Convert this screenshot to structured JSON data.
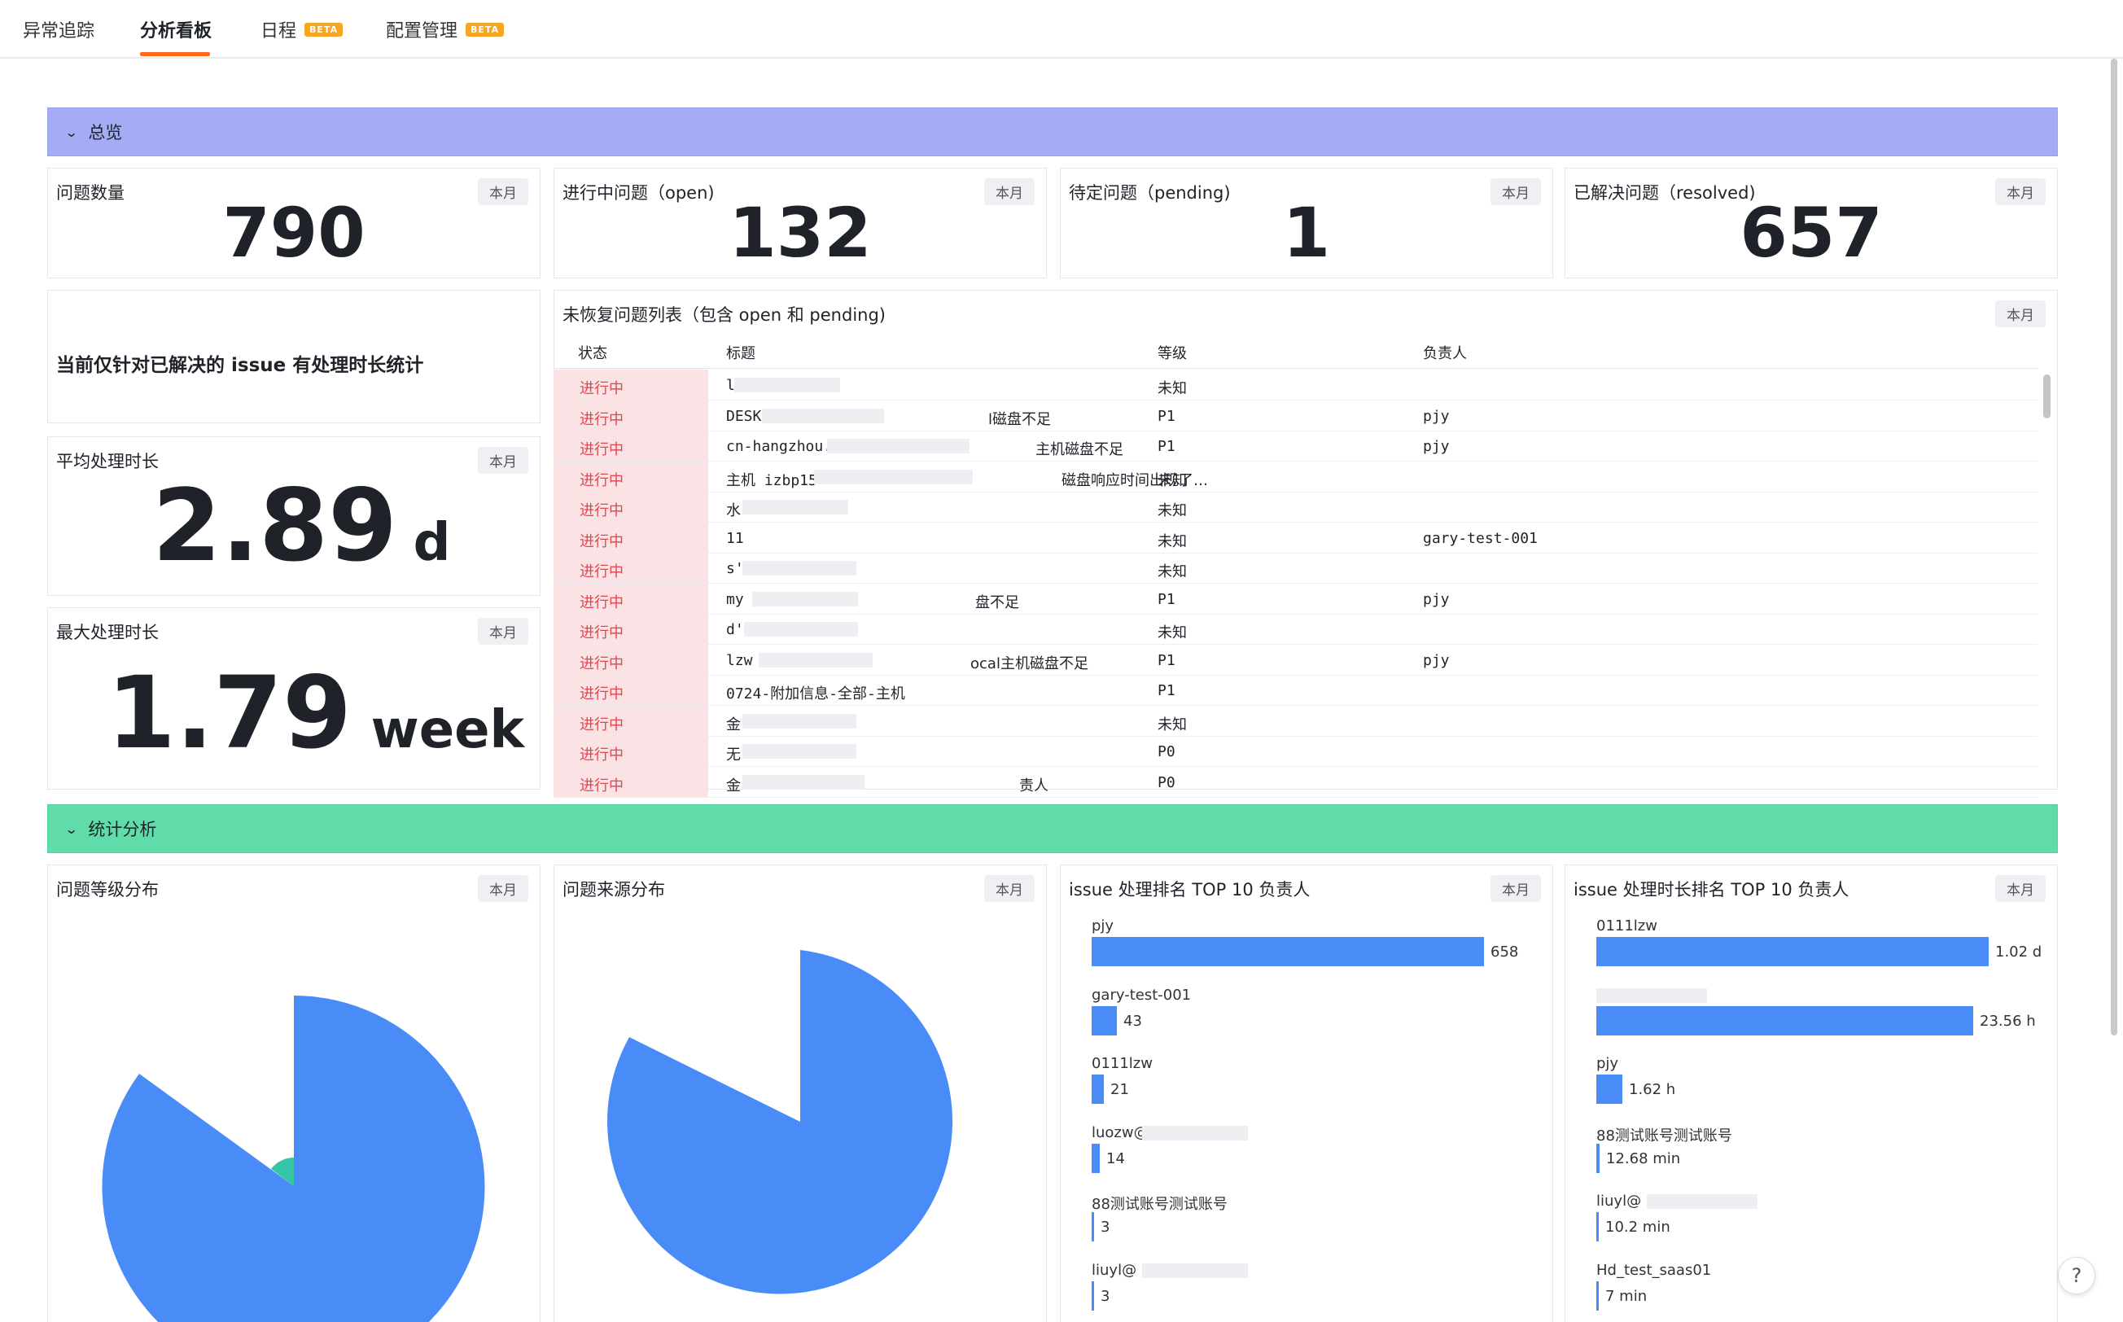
{
  "tabs": [
    {
      "label": "异常追踪",
      "beta": ""
    },
    {
      "label": "分析看板",
      "beta": ""
    },
    {
      "label": "日程",
      "beta": "BETA"
    },
    {
      "label": "配置管理",
      "beta": "BETA"
    }
  ],
  "period_badge": "本月",
  "overview": {
    "section_title": "总览",
    "kpis": [
      {
        "title": "问题数量",
        "value": "790"
      },
      {
        "title": "进行中问题（open)",
        "value": "132"
      },
      {
        "title": "待定问题（pending)",
        "value": "1"
      },
      {
        "title": "已解决问题（resolved)",
        "value": "657"
      }
    ],
    "note": "当前仅针对已解决的 issue 有处理时长统计",
    "avg": {
      "title": "平均处理时长",
      "value": "2.89",
      "unit": "d"
    },
    "max": {
      "title": "最大处理时长",
      "value": "1.79",
      "unit": "week"
    }
  },
  "open_table": {
    "title": "未恢复问题列表（包含 open 和 pending)",
    "columns": [
      "状态",
      "标题",
      "等级",
      "负责人"
    ],
    "rows": [
      {
        "status": "进行中",
        "title_a": "lh:",
        "title_b": "",
        "level": "未知",
        "owner": ""
      },
      {
        "status": "进行中",
        "title_a": "DESK",
        "title_b": "l磁盘不足",
        "level": "P1",
        "owner": "pjy"
      },
      {
        "status": "进行中",
        "title_a": "cn-hangzhou.",
        "title_b": "主机磁盘不足",
        "level": "P1",
        "owner": "pjy"
      },
      {
        "status": "进行中",
        "title_a": "主机 izbp15",
        "title_b": "磁盘响应时间出现了…",
        "level": "未知",
        "owner": ""
      },
      {
        "status": "进行中",
        "title_a": "水",
        "title_b": "",
        "level": "未知",
        "owner": ""
      },
      {
        "status": "进行中",
        "title_a": "11",
        "title_b": "",
        "level": "未知",
        "owner": "gary-test-001"
      },
      {
        "status": "进行中",
        "title_a": "s'",
        "title_b": "",
        "level": "未知",
        "owner": ""
      },
      {
        "status": "进行中",
        "title_a": "my",
        "title_b": "盘不足",
        "level": "P1",
        "owner": "pjy"
      },
      {
        "status": "进行中",
        "title_a": "d'",
        "title_b": "",
        "level": "未知",
        "owner": ""
      },
      {
        "status": "进行中",
        "title_a": "lzw",
        "title_b": "ocal主机磁盘不足",
        "level": "P1",
        "owner": "pjy"
      },
      {
        "status": "进行中",
        "title_a": "0724-附加信息-全部-主机",
        "title_b": "",
        "level": "P1",
        "owner": ""
      },
      {
        "status": "进行中",
        "title_a": "金",
        "title_b": "",
        "level": "未知",
        "owner": ""
      },
      {
        "status": "进行中",
        "title_a": "无",
        "title_b": "",
        "level": "P0",
        "owner": ""
      },
      {
        "status": "进行中",
        "title_a": "金",
        "title_b": "责人",
        "level": "P0",
        "owner": ""
      }
    ]
  },
  "stats": {
    "section_title": "统计分析",
    "level_pie": {
      "title": "问题等级分布"
    },
    "source_pie": {
      "title": "问题来源分布"
    },
    "rank_count": {
      "title": "issue 处理排名 TOP 10 负责人",
      "items": [
        {
          "name": "pjy",
          "value": 658,
          "label": "658"
        },
        {
          "name": "gary-test-001",
          "value": 43,
          "label": "43"
        },
        {
          "name": "0111lzw",
          "value": 21,
          "label": "21"
        },
        {
          "name": "luozw@",
          "value": 14,
          "label": "14"
        },
        {
          "name": "88测试账号测试账号",
          "value": 3,
          "label": "3"
        },
        {
          "name": "liuyl@",
          "value": 3,
          "label": "3"
        }
      ]
    },
    "rank_duration": {
      "title": "issue 处理时长排名 TOP 10 负责人",
      "items": [
        {
          "name": "0111lzw",
          "value": 1.02,
          "unit": "d",
          "label": "1.02 d"
        },
        {
          "name": "",
          "value": 0.98,
          "unit": "d",
          "label": "23.56 h"
        },
        {
          "name": "pjy",
          "value": 0.0675,
          "unit": "d",
          "label": "1.62 h"
        },
        {
          "name": "88测试账号测试账号",
          "value": 0.0088,
          "unit": "d",
          "label": "12.68 min"
        },
        {
          "name": "liuyl@",
          "value": 0.0071,
          "unit": "d",
          "label": "10.2 min"
        },
        {
          "name": "Hd_test_saas01",
          "value": 0.0049,
          "unit": "d",
          "label": "7 min"
        }
      ]
    }
  },
  "help_label": "?",
  "colors": {
    "accent": "#ff6a1a",
    "bar": "#4a8cf7",
    "overview": "#a4acf6",
    "stats": "#60dcaa",
    "status_bg": "#fbe2e4",
    "status_text": "#e0474e"
  }
}
